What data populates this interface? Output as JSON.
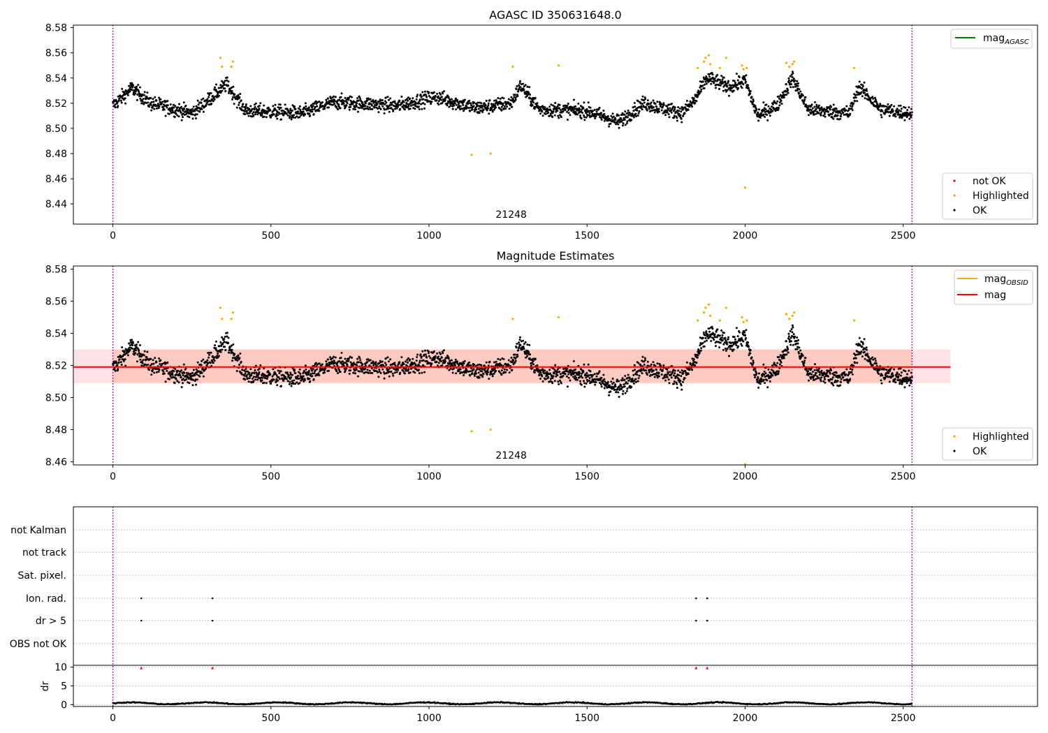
{
  "chart_data": [
    {
      "type": "scatter",
      "title": "AGASC ID 350631648.0",
      "xlabel": "",
      "ylabel": "",
      "xlim": [
        -125,
        2925
      ],
      "ylim": [
        8.424,
        8.582
      ],
      "xticks": [
        "0",
        "500",
        "1000",
        "1500",
        "2000",
        "2500"
      ],
      "yticks": [
        "8.44",
        "8.46",
        "8.48",
        "8.50",
        "8.52",
        "8.54",
        "8.56",
        "8.58"
      ],
      "obsid_label": "21248",
      "obsid_label_x": 1260,
      "obs_boundaries": [
        0,
        2528
      ],
      "legend_lines": [
        {
          "name": "mag",
          "subscript": "AGASC",
          "color": "#008000"
        }
      ],
      "legend_markers": [
        {
          "name": "not OK",
          "color": "#ff0000"
        },
        {
          "name": "Highlighted",
          "color": "#ffa500"
        },
        {
          "name": "OK",
          "color": "#000000"
        }
      ],
      "series": [
        {
          "name": "OK",
          "color": "#000000",
          "n_points": 2530,
          "x_range": [
            0,
            2528
          ],
          "typical_range": [
            8.495,
            8.545
          ],
          "median": 8.518
        },
        {
          "name": "Highlighted",
          "color": "#ffa500",
          "points": [
            [
              340,
              8.556
            ],
            [
              345,
              8.549
            ],
            [
              375,
              8.549
            ],
            [
              380,
              8.553
            ],
            [
              1135,
              8.479
            ],
            [
              1195,
              8.48
            ],
            [
              1265,
              8.549
            ],
            [
              1410,
              8.55
            ],
            [
              1850,
              8.548
            ],
            [
              1870,
              8.553
            ],
            [
              1875,
              8.556
            ],
            [
              1885,
              8.558
            ],
            [
              1890,
              8.551
            ],
            [
              1920,
              8.548
            ],
            [
              1940,
              8.556
            ],
            [
              1990,
              8.55
            ],
            [
              1995,
              8.547
            ],
            [
              2000,
              8.453
            ],
            [
              2005,
              8.548
            ],
            [
              2130,
              8.552
            ],
            [
              2140,
              8.549
            ],
            [
              2150,
              8.551
            ],
            [
              2155,
              8.553
            ],
            [
              2345,
              8.548
            ]
          ]
        },
        {
          "name": "not OK",
          "color": "#ff0000",
          "points": []
        }
      ]
    },
    {
      "type": "scatter",
      "title": "Magnitude Estimates",
      "xlabel": "",
      "ylabel": "",
      "xlim": [
        -125,
        2925
      ],
      "ylim": [
        8.458,
        8.582
      ],
      "xticks": [
        "0",
        "500",
        "1000",
        "1500",
        "2000",
        "2500"
      ],
      "yticks": [
        "8.46",
        "8.48",
        "8.50",
        "8.52",
        "8.54",
        "8.56",
        "8.58"
      ],
      "obsid_label": "21248",
      "obsid_label_x": 1260,
      "obs_boundaries": [
        0,
        2528
      ],
      "mag": 8.519,
      "mag_band": [
        8.509,
        8.53
      ],
      "mag_band_x": [
        -125,
        2650
      ],
      "obsid_band_x": [
        0,
        2528
      ],
      "legend_lines": [
        {
          "name": "mag",
          "subscript": "OBSID",
          "color": "#ffa500"
        },
        {
          "name": "mag",
          "subscript": "",
          "color": "#ff0000"
        }
      ],
      "legend_markers": [
        {
          "name": "Highlighted",
          "color": "#ffa500"
        },
        {
          "name": "OK",
          "color": "#000000"
        }
      ]
    },
    {
      "type": "scatter",
      "title": "",
      "xlim": [
        -125,
        2925
      ],
      "xticks": [
        "0",
        "500",
        "1000",
        "1500",
        "2000",
        "2500"
      ],
      "flag_rows": [
        "not Kalman",
        "not track",
        "Sat. pixel.",
        "Ion. rad.",
        "dr > 5",
        "OBS not OK"
      ],
      "flags": {
        "Ion. rad.": [
          90,
          315,
          1845,
          1880
        ],
        "dr > 5": [
          90,
          315,
          1845,
          1880
        ]
      },
      "dr": {
        "ylabel": "dr",
        "yticks": [
          "0",
          "5",
          "10"
        ],
        "ylim": [
          -0.5,
          10.5
        ],
        "capped_points": [
          90,
          315,
          1845,
          1880
        ],
        "typical_range": [
          0,
          1
        ]
      }
    }
  ]
}
